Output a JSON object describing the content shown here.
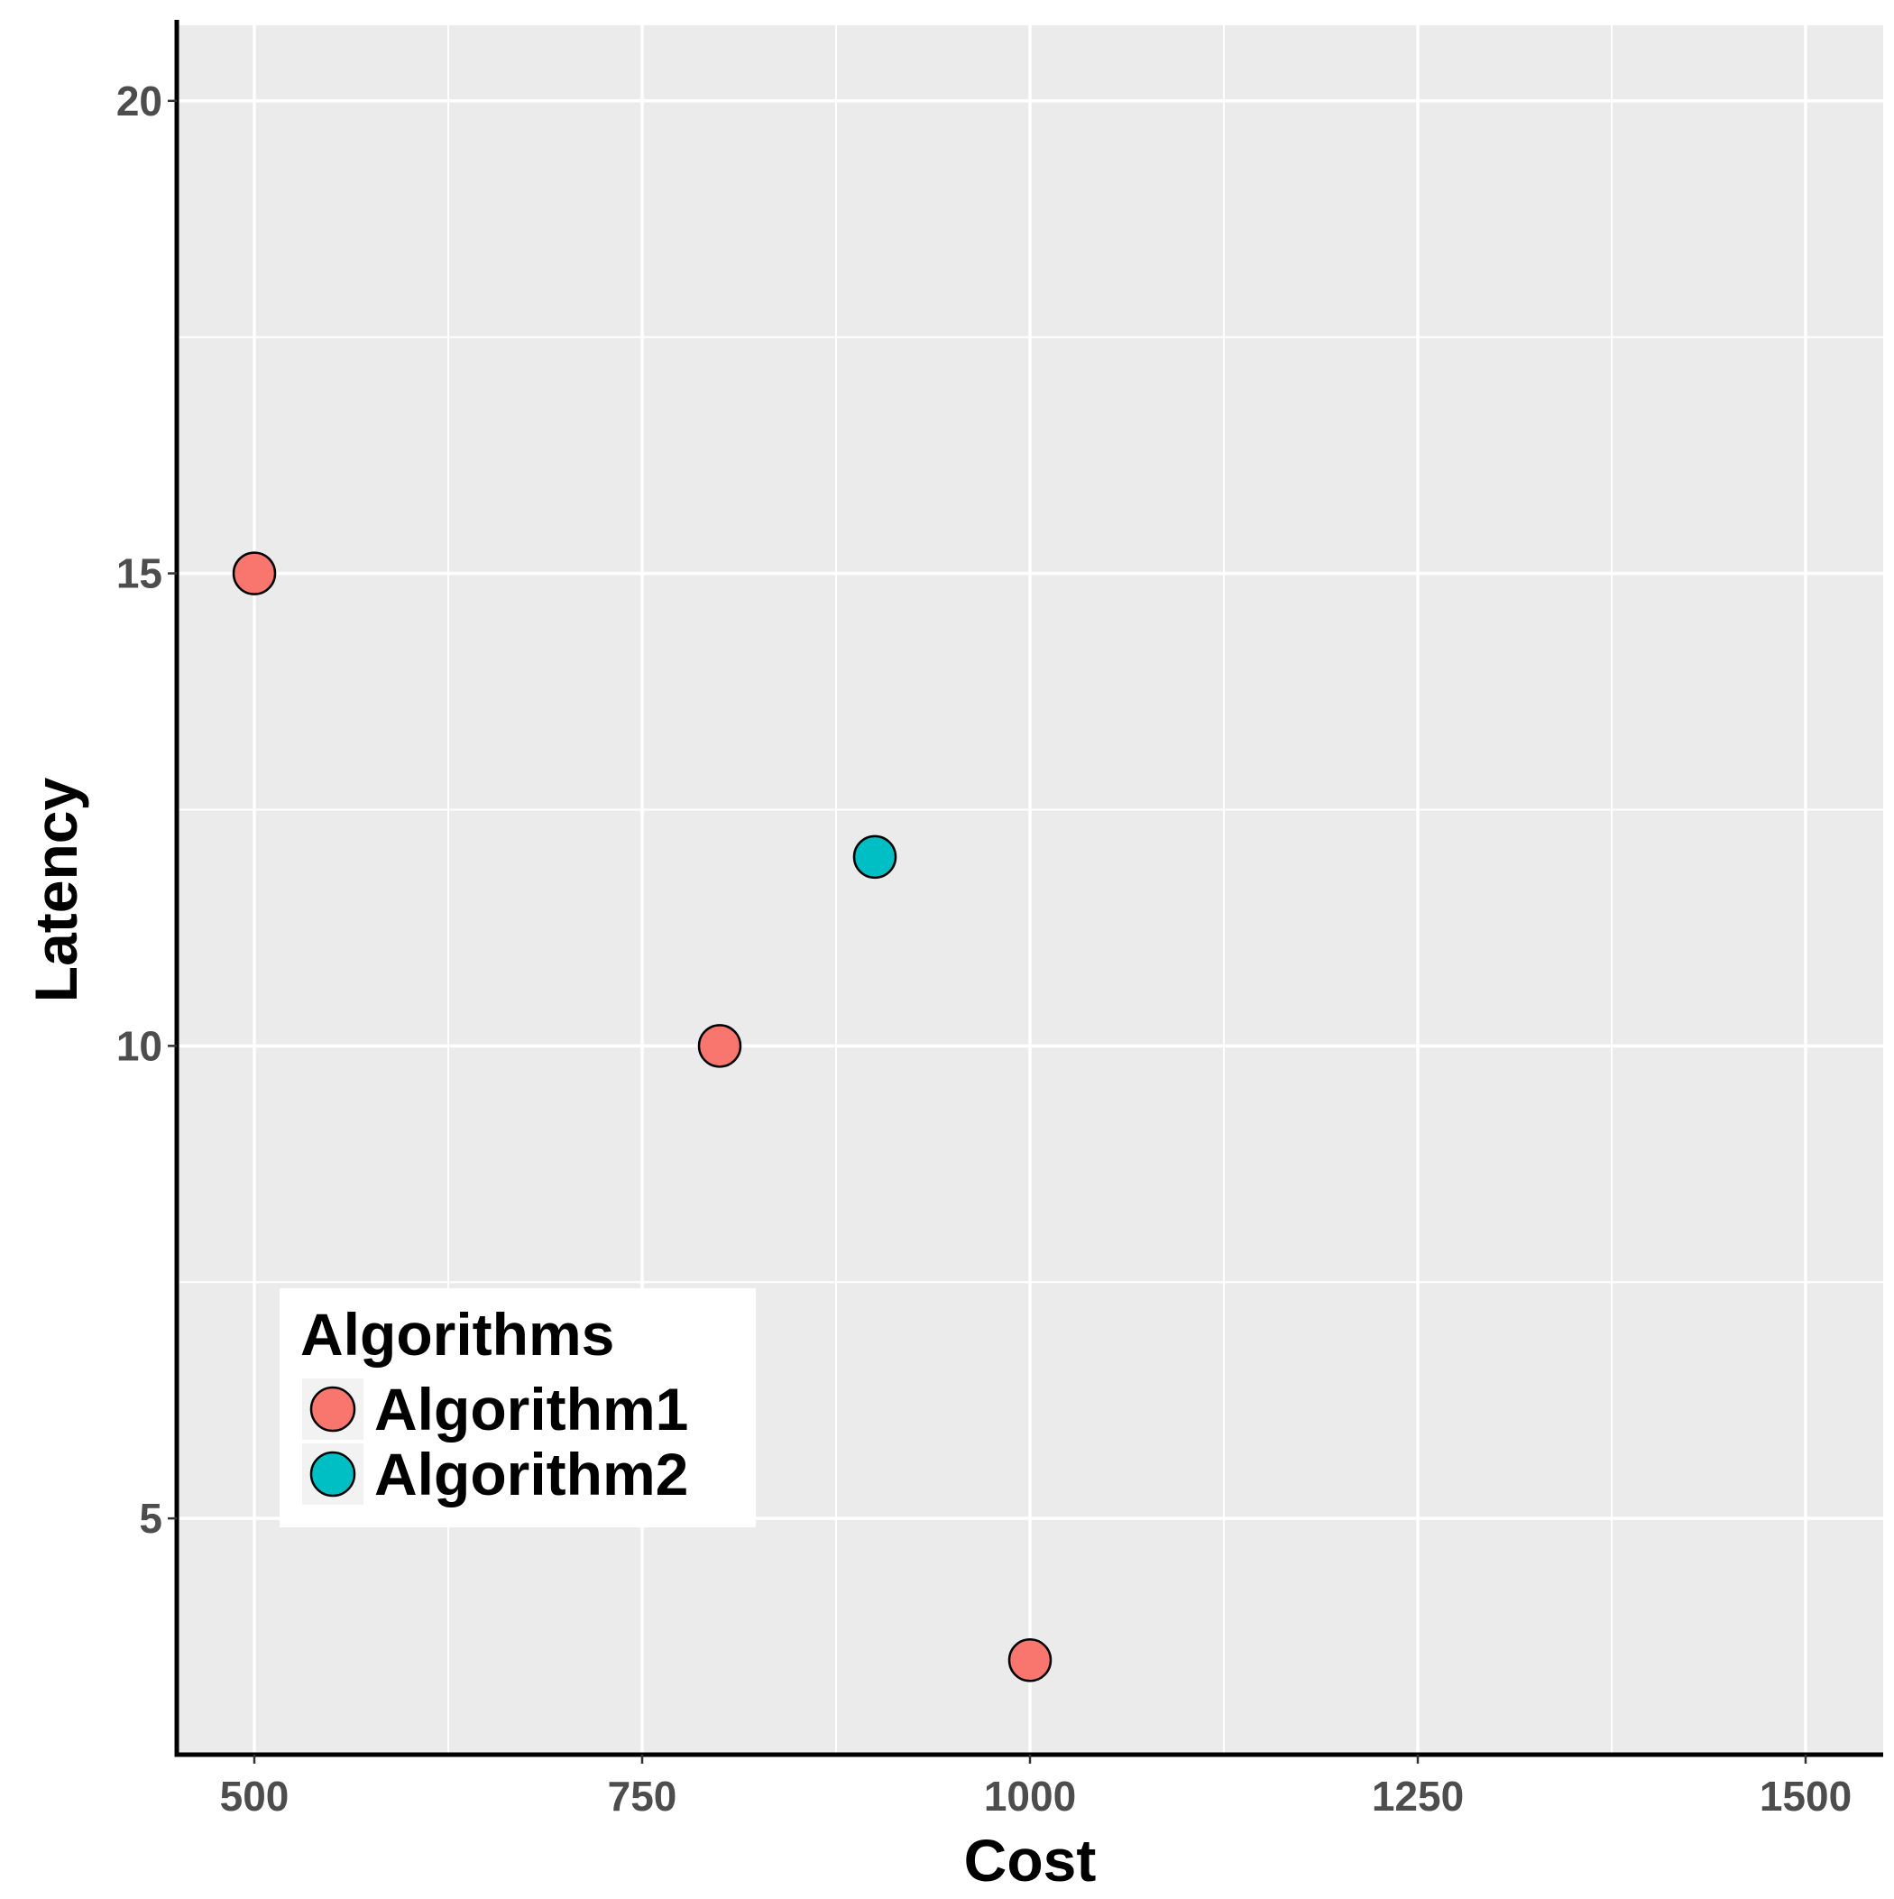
{
  "chart_data": {
    "type": "scatter",
    "xlabel": "Cost",
    "ylabel": "Latency",
    "xlim": [
      450,
      1550
    ],
    "ylim": [
      2.5,
      20.8
    ],
    "x_ticks": [
      500,
      750,
      1000,
      1250,
      1500
    ],
    "x_tick_labels": [
      "500",
      "750",
      "1000",
      "1250",
      "1500"
    ],
    "y_ticks": [
      5,
      10,
      15,
      20
    ],
    "y_tick_labels": [
      "5",
      "10",
      "15",
      "20"
    ],
    "grid": true,
    "legend": {
      "title": "Algorithms",
      "placement": "bottom-left"
    },
    "series": [
      {
        "name": "Algorithm1",
        "color": "#F8766D",
        "points": [
          {
            "x": 500,
            "y": 15
          },
          {
            "x": 800,
            "y": 10
          },
          {
            "x": 1000,
            "y": 3.5
          }
        ]
      },
      {
        "name": "Algorithm2",
        "color": "#00BFC4",
        "points": [
          {
            "x": 900,
            "y": 12
          }
        ]
      }
    ]
  }
}
